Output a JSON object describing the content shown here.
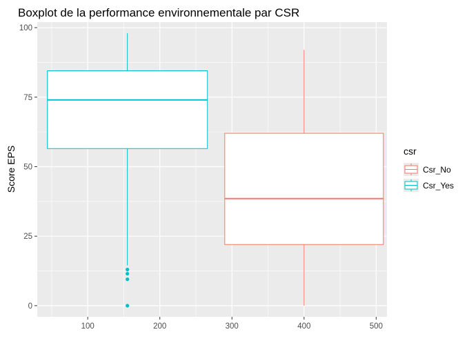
{
  "chart_data": {
    "type": "boxplot",
    "title": "Boxplot de la performance environnementale par CSR",
    "xlabel": "",
    "ylabel": "Score EPS",
    "xlim": [
      30,
      515
    ],
    "ylim": [
      -4,
      102
    ],
    "x_ticks": [
      100,
      200,
      300,
      400,
      500
    ],
    "y_ticks": [
      0,
      25,
      50,
      75,
      100
    ],
    "grid": true,
    "legend_title": "csr",
    "legend_position": "right",
    "series": [
      {
        "name": "Csr_No",
        "color": "#F8766D",
        "x_center": 400,
        "x_range": [
          290,
          510
        ],
        "whisker_low": 0,
        "q1": 22,
        "median": 38.5,
        "q3": 62,
        "whisker_high": 92,
        "outliers": []
      },
      {
        "name": "Csr_Yes",
        "color": "#00BFC4",
        "x_center": 155,
        "x_range": [
          44,
          266
        ],
        "whisker_low": 14.5,
        "q1": 56.5,
        "median": 74,
        "q3": 84.5,
        "whisker_high": 98,
        "outliers": [
          0,
          9.5,
          11.5,
          13
        ]
      }
    ]
  }
}
